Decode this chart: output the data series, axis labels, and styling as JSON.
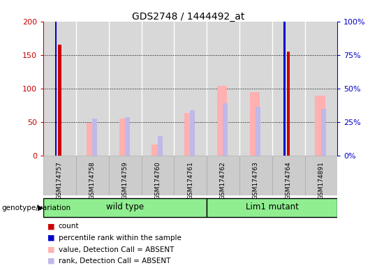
{
  "title": "GDS2748 / 1444492_at",
  "samples": [
    "GSM174757",
    "GSM174758",
    "GSM174759",
    "GSM174760",
    "GSM174761",
    "GSM174762",
    "GSM174763",
    "GSM174764",
    "GSM174891"
  ],
  "count_values": [
    165,
    0,
    0,
    0,
    0,
    0,
    0,
    155,
    0
  ],
  "percentile_values": [
    103,
    0,
    0,
    0,
    0,
    0,
    0,
    101,
    0
  ],
  "absent_value": [
    0,
    49,
    55,
    16,
    63,
    104,
    95,
    0,
    89
  ],
  "absent_rank": [
    0,
    55,
    57,
    29,
    67,
    78,
    73,
    0,
    70
  ],
  "count_color": "#cc0000",
  "percentile_color": "#0000cc",
  "absent_value_color": "#ffb0b0",
  "absent_rank_color": "#c0b8e8",
  "ylim_left": [
    0,
    200
  ],
  "yticks_left": [
    0,
    50,
    100,
    150,
    200
  ],
  "ytick_labels_right": [
    "0%",
    "25%",
    "50%",
    "75%",
    "100%"
  ],
  "grid_values": [
    50,
    100,
    150
  ],
  "wild_type_label": "wild type",
  "lim1_mutant_label": "Lim1 mutant",
  "genotype_label": "genotype/variation",
  "group_bg_color": "#90ee90",
  "bar_area_bg_color": "#d8d8d8",
  "xtick_bg_color": "#cccccc",
  "legend_items": [
    {
      "label": "count",
      "color": "#cc0000"
    },
    {
      "label": "percentile rank within the sample",
      "color": "#0000cc"
    },
    {
      "label": "value, Detection Call = ABSENT",
      "color": "#ffb0b0"
    },
    {
      "label": "rank, Detection Call = ABSENT",
      "color": "#c0b8e8"
    }
  ],
  "absent_bar_width": 0.3,
  "rank_bar_width": 0.15,
  "count_bar_width": 0.1,
  "percentile_bar_width": 0.05
}
